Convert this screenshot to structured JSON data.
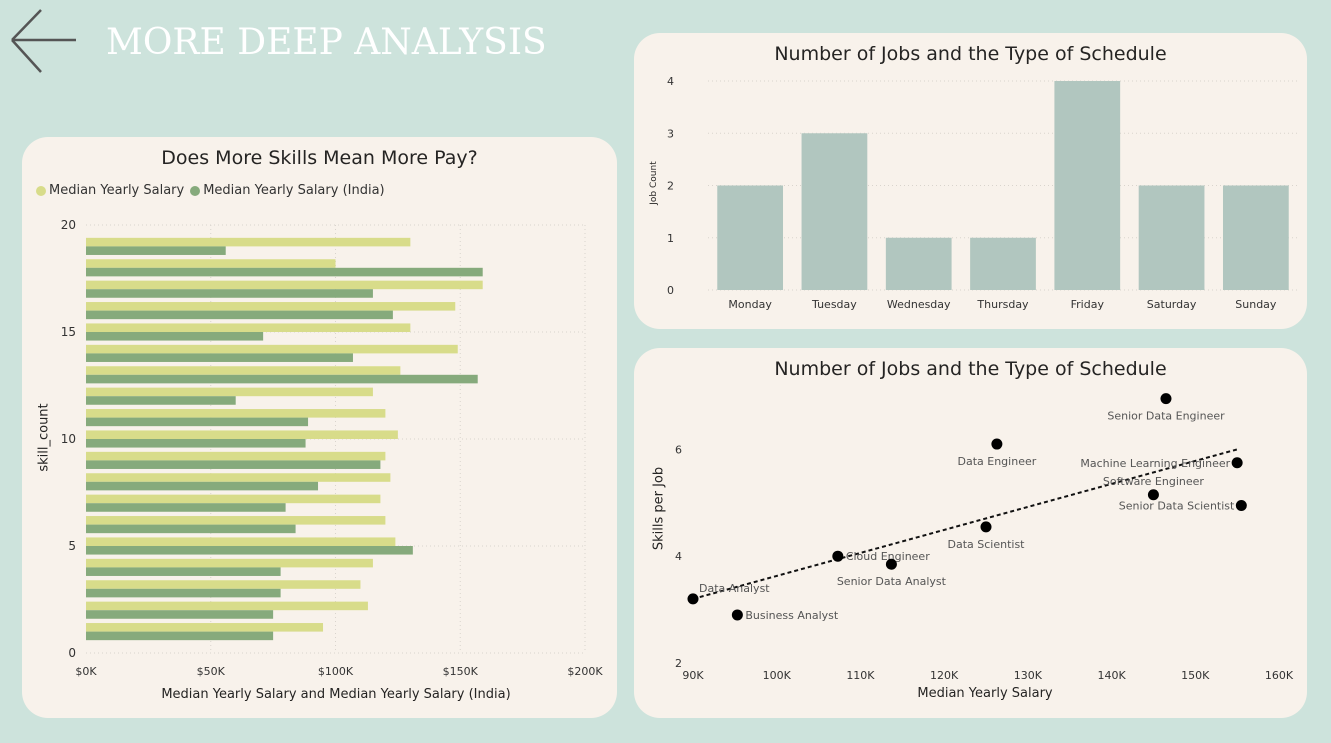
{
  "page": {
    "title": "MORE DEEP ANALYSIS"
  },
  "colors": {
    "background": "#cde3dc",
    "card": "#f8f2eb",
    "series_light": "#d8dc8a",
    "series_dark": "#86aa7c",
    "bar_gray": "#b1c6bf",
    "point": "#000000"
  },
  "icons": {
    "back": "arrow-left-icon"
  },
  "chart_data": [
    {
      "id": "skills_pay",
      "type": "bar",
      "orientation": "horizontal",
      "title": "Does More Skills Mean More Pay?",
      "xlabel": "Median Yearly Salary and Median Yearly Salary (India)",
      "ylabel": "skill_count",
      "xlim": [
        0,
        200000
      ],
      "ylim": [
        0,
        20
      ],
      "x_ticks": [
        "$0K",
        "$50K",
        "$100K",
        "$150K",
        "$200K"
      ],
      "y_ticks": [
        "0",
        "5",
        "10",
        "15",
        "20"
      ],
      "legend_position": "top-left",
      "grid": true,
      "categories": [
        19,
        18,
        17,
        16,
        15,
        14,
        13,
        12,
        11,
        10,
        9,
        8,
        7,
        6,
        5,
        4,
        3,
        2,
        1
      ],
      "series": [
        {
          "name": "Median Yearly Salary",
          "color": "#d8dc8a",
          "values": [
            130000,
            100000,
            159000,
            148000,
            130000,
            149000,
            126000,
            115000,
            120000,
            125000,
            120000,
            122000,
            118000,
            120000,
            124000,
            115000,
            110000,
            113000,
            95000
          ]
        },
        {
          "name": "Median Yearly Salary (India)",
          "color": "#86aa7c",
          "values": [
            56000,
            159000,
            115000,
            123000,
            71000,
            107000,
            157000,
            60000,
            89000,
            88000,
            118000,
            93000,
            80000,
            84000,
            131000,
            78000,
            78000,
            75000,
            75000
          ]
        }
      ]
    },
    {
      "id": "jobs_schedule",
      "type": "bar",
      "title": "Number of Jobs and the Type of Schedule",
      "xlabel": "",
      "ylabel": "Job Count",
      "ylim": [
        0,
        4
      ],
      "y_ticks": [
        "0",
        "1",
        "2",
        "3",
        "4"
      ],
      "grid": true,
      "categories": [
        "Monday",
        "Tuesday",
        "Wednesday",
        "Thursday",
        "Friday",
        "Saturday",
        "Sunday"
      ],
      "values": [
        2,
        3,
        1,
        1,
        4,
        2,
        2
      ]
    },
    {
      "id": "skills_per_job",
      "type": "scatter",
      "title": "Number of Jobs and the Type of Schedule",
      "xlabel": "Median Yearly Salary",
      "ylabel": "Skills per Job",
      "xlim": [
        90000,
        160000
      ],
      "ylim": [
        2,
        7
      ],
      "x_ticks": [
        "90K",
        "100K",
        "110K",
        "120K",
        "130K",
        "140K",
        "150K",
        "160K"
      ],
      "y_ticks": [
        "2",
        "4",
        "6"
      ],
      "trendline": {
        "style": "dashed",
        "from": [
          90000,
          3.2
        ],
        "to": [
          155000,
          6.0
        ]
      },
      "points": [
        {
          "label": "Data Analyst",
          "x": 90000,
          "y": 3.2
        },
        {
          "label": "Business Analyst",
          "x": 95300,
          "y": 2.9
        },
        {
          "label": "Cloud Engineer",
          "x": 107300,
          "y": 4.0
        },
        {
          "label": "Senior Data Analyst",
          "x": 113700,
          "y": 3.85
        },
        {
          "label": "Data Scientist",
          "x": 125000,
          "y": 4.55
        },
        {
          "label": "Data Engineer",
          "x": 126300,
          "y": 6.1
        },
        {
          "label": "Software Engineer",
          "x": 145000,
          "y": 5.15
        },
        {
          "label": "Senior Data Engineer",
          "x": 146500,
          "y": 6.95
        },
        {
          "label": "Machine Learning Engineer",
          "x": 155000,
          "y": 5.75
        },
        {
          "label": "Senior Data Scientist",
          "x": 155500,
          "y": 4.95
        }
      ]
    }
  ]
}
